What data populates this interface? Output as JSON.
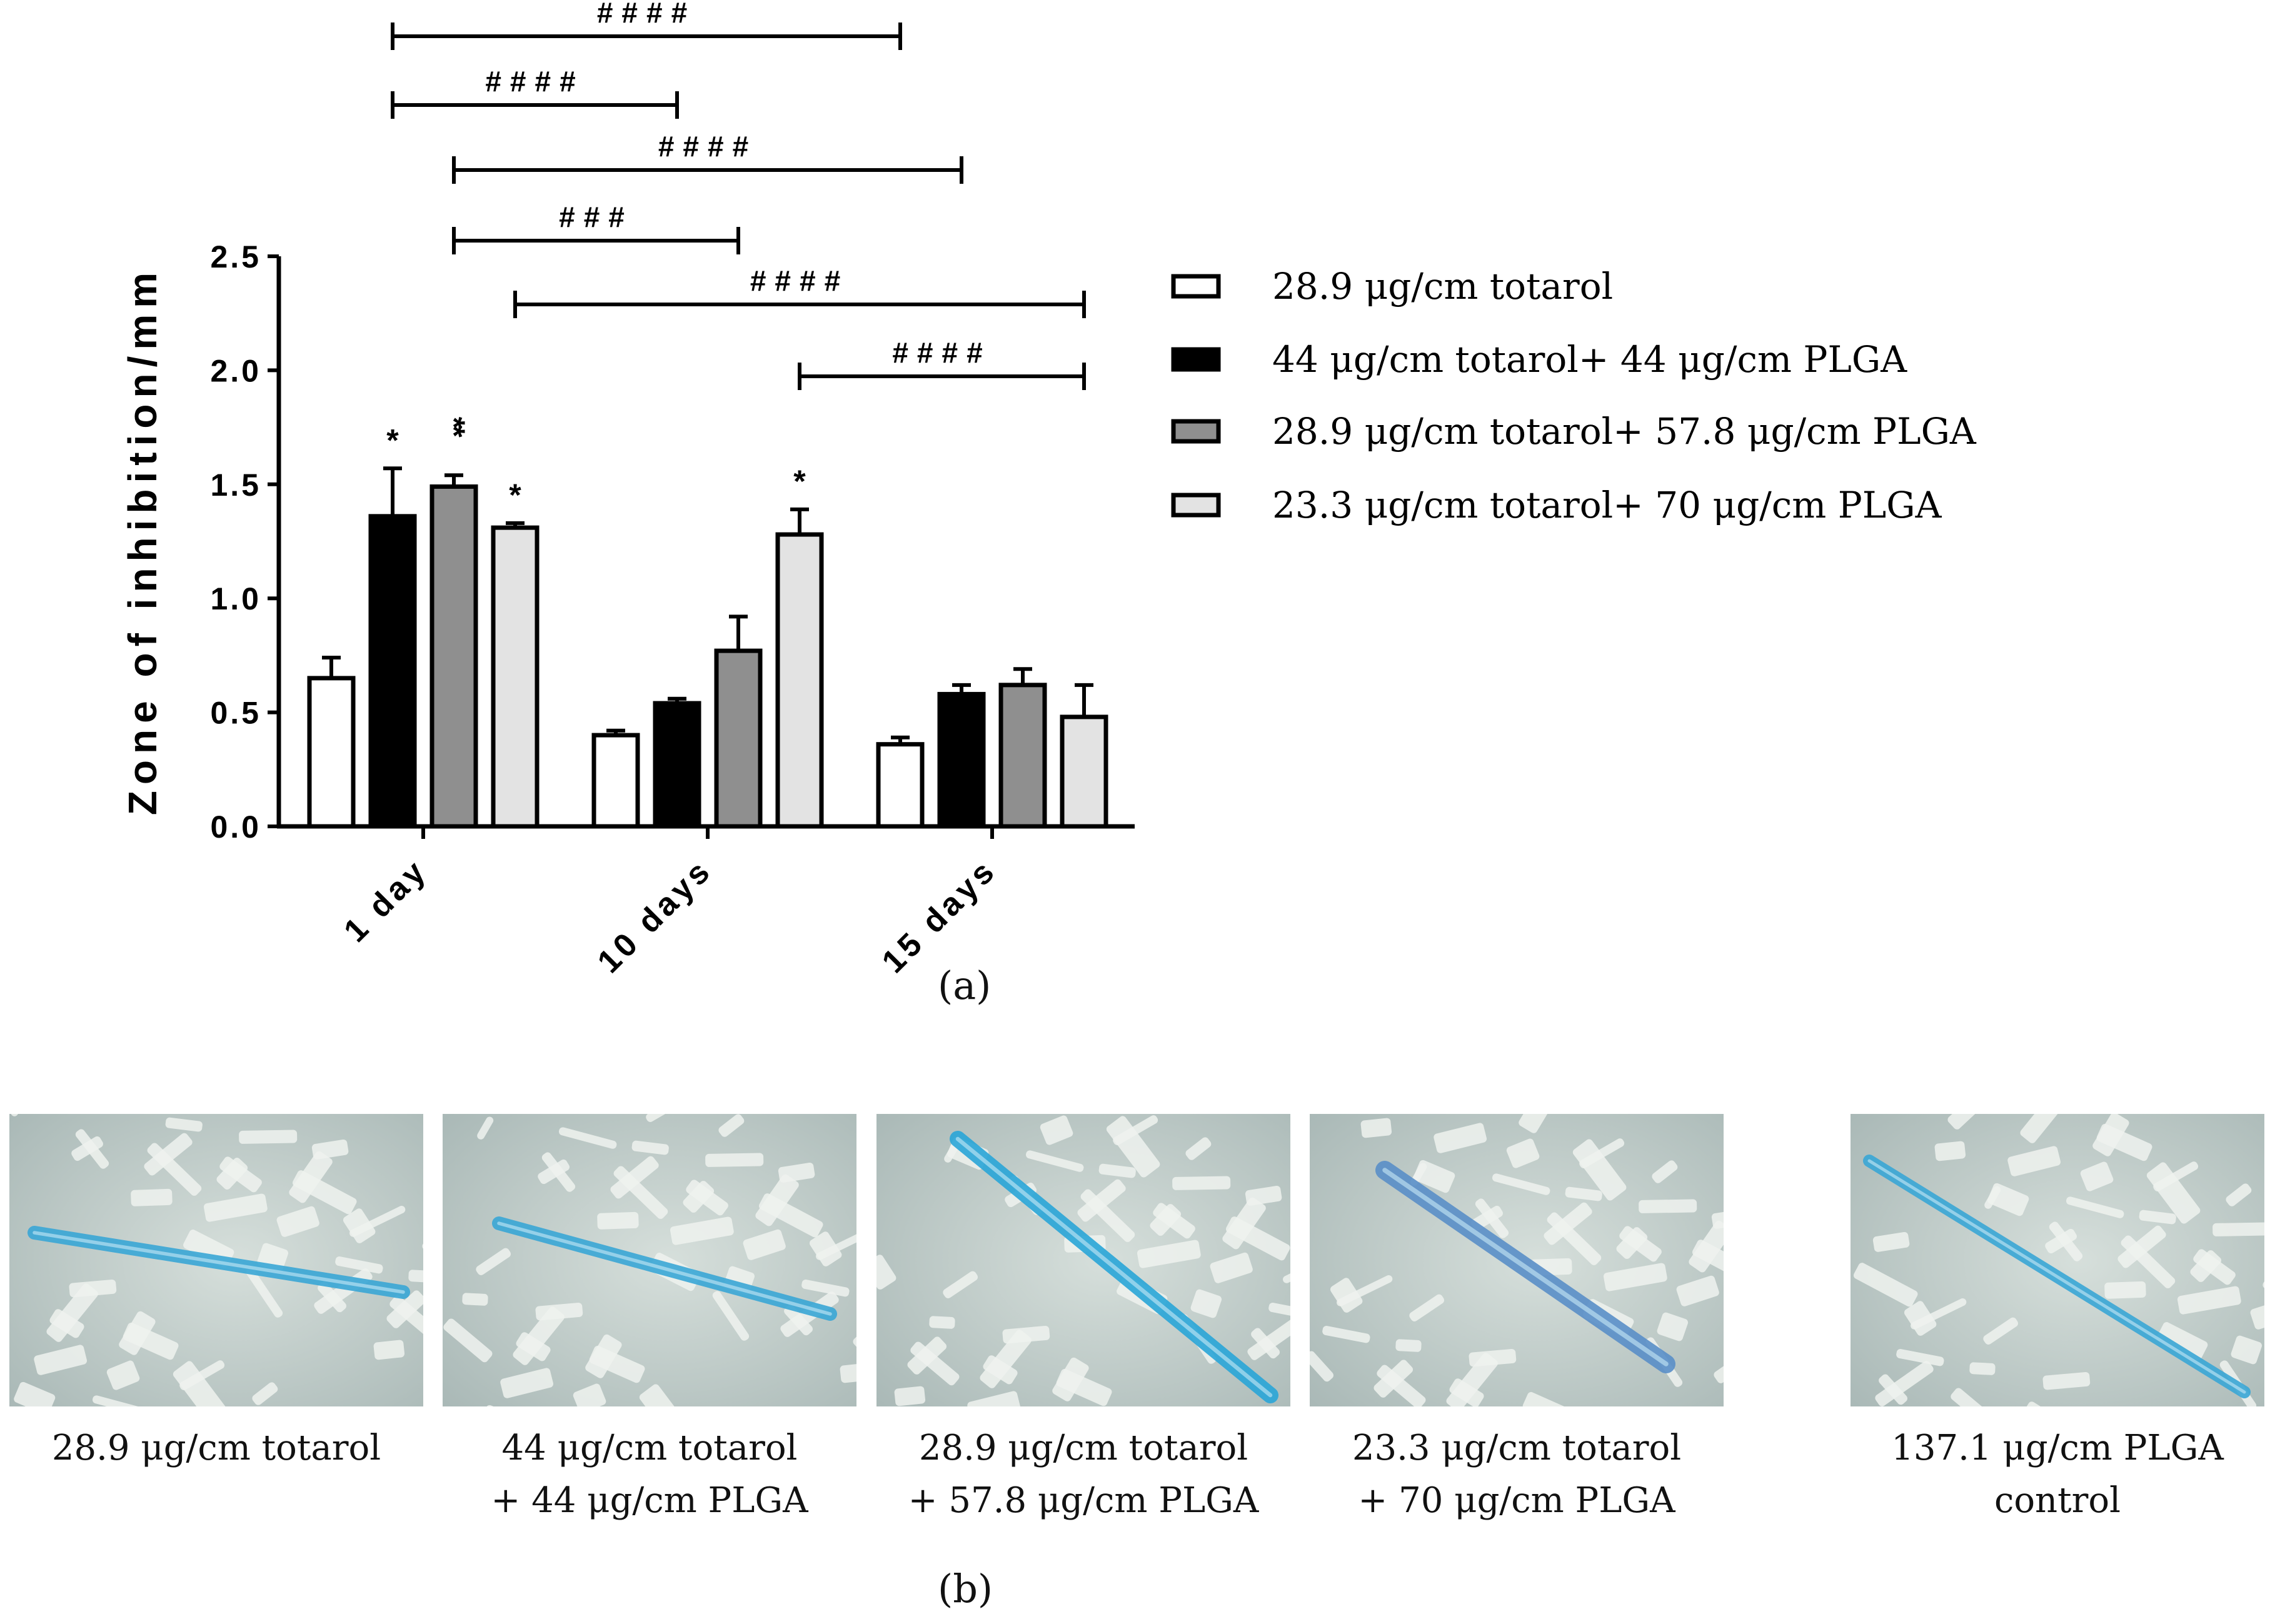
{
  "panel_a_label": "(a)",
  "panel_b_label": "(b)",
  "chart_data": {
    "type": "bar",
    "ylabel": "Zone of inhibition/mm",
    "xlabel": "",
    "ylim": [
      0,
      2.5
    ],
    "yticks": [
      "0.0",
      "0.5",
      "1.0",
      "1.5",
      "2.0",
      "2.5"
    ],
    "ytick_values": [
      0,
      0.5,
      1.0,
      1.5,
      2.0,
      2.5
    ],
    "categories": [
      "1 day",
      "10 days",
      "15 days"
    ],
    "legend_position": "right",
    "series": [
      {
        "name": "28.9 μg/cm  totarol",
        "color": "#ffffff",
        "values": [
          0.65,
          0.4,
          0.36
        ],
        "errors": [
          0.09,
          0.02,
          0.03
        ]
      },
      {
        "name": "44 μg/cm  totarol+ 44 μg/cm  PLGA",
        "color": "#000000",
        "values": [
          1.36,
          0.54,
          0.58
        ],
        "errors": [
          0.21,
          0.02,
          0.04
        ]
      },
      {
        "name": "28.9 μg/cm  totarol+ 57.8 μg/cm  PLGA",
        "color": "#8f8f8f",
        "values": [
          1.49,
          0.77,
          0.62
        ],
        "errors": [
          0.05,
          0.15,
          0.07
        ]
      },
      {
        "name": "23.3 μg/cm  totarol+ 70 μg/cm  PLGA",
        "color": "#e3e3e3",
        "values": [
          1.31,
          1.28,
          0.48
        ],
        "errors": [
          0.02,
          0.11,
          0.14
        ]
      }
    ],
    "significance_marks": [
      {
        "category": 0,
        "series": 1,
        "text": "*"
      },
      {
        "category": 0,
        "series": 2,
        "text": "**"
      },
      {
        "category": 0,
        "series": 3,
        "text": "*"
      },
      {
        "category": 1,
        "series": 3,
        "text": "*"
      }
    ],
    "comparison_brackets": [
      {
        "from": [
          0,
          1
        ],
        "to": [
          2,
          0
        ],
        "text": "####"
      },
      {
        "from": [
          0,
          1
        ],
        "to": [
          1,
          1
        ],
        "text": "####"
      },
      {
        "from": [
          0,
          2
        ],
        "to": [
          2,
          1
        ],
        "text": "####"
      },
      {
        "from": [
          0,
          2
        ],
        "to": [
          1,
          2
        ],
        "text": "###"
      },
      {
        "from": [
          0,
          3
        ],
        "to": [
          2,
          3
        ],
        "text": "####"
      },
      {
        "from": [
          1,
          3
        ],
        "to": [
          2,
          3
        ],
        "text": "####"
      }
    ]
  },
  "photos": [
    {
      "caption_lines": [
        "28.9 μg/cm  totarol"
      ],
      "fiber_color": "#3aa7d6"
    },
    {
      "caption_lines": [
        "44 μg/cm  totarol",
        "+ 44 μg/cm  PLGA"
      ],
      "fiber_color": "#3aa7d6"
    },
    {
      "caption_lines": [
        "28.9 μg/cm  totarol",
        "+ 57.8 μg/cm  PLGA"
      ],
      "fiber_color": "#2aa6d8"
    },
    {
      "caption_lines": [
        "23.3 μg/cm  totarol",
        "+ 70 μg/cm  PLGA"
      ],
      "fiber_color": "#5a8fc8"
    },
    {
      "caption_lines": [
        "137.1 μg/cm  PLGA",
        "control"
      ],
      "fiber_color": "#3aa7d6"
    }
  ]
}
